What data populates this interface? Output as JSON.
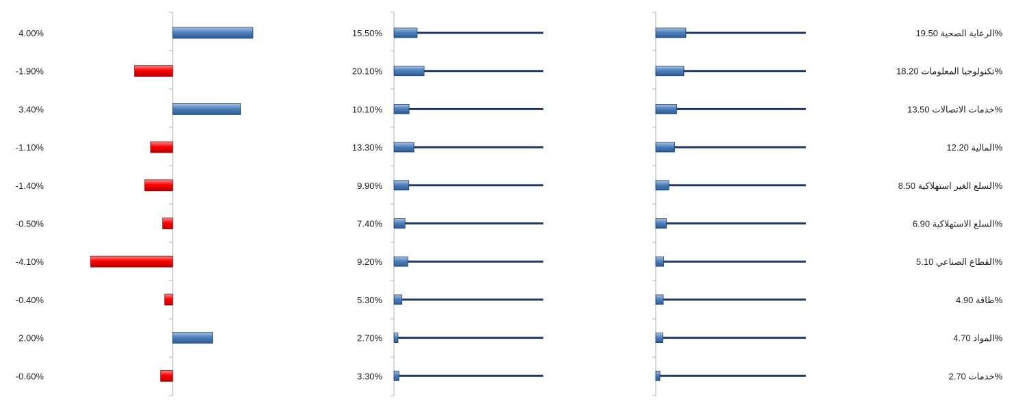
{
  "chart_data": [
    {
      "type": "bar",
      "orientation": "horizontal",
      "title": "",
      "categories": [
        "الرعاية الصحية",
        "تكنولوجيا المعلومات",
        "خدمات الاتصالات",
        "المالية",
        "السلع الغير استهلاكية ",
        "السلع الاستهلاكية",
        "القطاع الصناعي",
        "طاقة",
        "المواد",
        "خدمات"
      ],
      "value_labels": [
        "19.50%",
        "18.20%",
        "13.50%",
        "12.20%",
        "8.50%",
        "6.90%",
        "5.10%",
        "4.90%",
        "4.70%",
        "2.70%"
      ],
      "values": [
        19.5,
        18.2,
        13.5,
        12.2,
        8.5,
        6.9,
        5.1,
        4.9,
        4.7,
        2.7
      ],
      "bar_color": "#4f81bd",
      "track_color": "#1f3864"
    },
    {
      "type": "bar",
      "orientation": "horizontal",
      "title": "",
      "value_labels": [
        "15.50%",
        "20.10%",
        "10.10%",
        "13.30%",
        "9.90%",
        "7.40%",
        "9.20%",
        "5.30%",
        "2.70%",
        "3.30%"
      ],
      "values": [
        15.5,
        20.1,
        10.1,
        13.3,
        9.9,
        7.4,
        9.2,
        5.3,
        2.7,
        3.3
      ],
      "bar_color": "#4f81bd",
      "track_color": "#1f3864"
    },
    {
      "type": "bar",
      "orientation": "horizontal",
      "title": "",
      "value_labels": [
        "4.00%",
        "-1.90%",
        "3.40%",
        "-1.10%",
        "-1.40%",
        "-0.50%",
        "-4.10%",
        "-0.40%",
        "2.00%",
        "-0.60%"
      ],
      "values": [
        4.0,
        -1.9,
        3.4,
        -1.1,
        -1.4,
        -0.5,
        -4.1,
        -0.4,
        2.0,
        -0.6
      ],
      "positive_color": "#4f81bd",
      "negative_color": "#ff0000"
    }
  ]
}
